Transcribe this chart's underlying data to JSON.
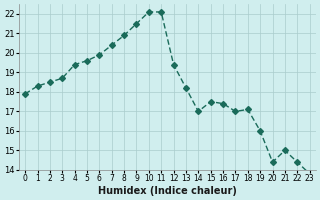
{
  "xlabel": "Humidex (Indice chaleur)",
  "x": [
    0,
    1,
    2,
    3,
    4,
    5,
    6,
    7,
    8,
    9,
    10,
    11,
    12,
    13,
    14,
    15,
    16,
    17,
    18,
    19,
    20,
    21,
    22,
    23
  ],
  "y": [
    17.9,
    18.3,
    18.5,
    18.7,
    19.4,
    19.6,
    19.9,
    20.4,
    20.9,
    21.5,
    22.1,
    22.1,
    19.4,
    18.2,
    17.0,
    17.5,
    17.4,
    17.0,
    17.1,
    16.0,
    14.4,
    15.0,
    14.4,
    13.8
  ],
  "ylim": [
    14,
    22.5
  ],
  "yticks": [
    14,
    15,
    16,
    17,
    18,
    19,
    20,
    21,
    22
  ],
  "xticks": [
    0,
    1,
    2,
    3,
    4,
    5,
    6,
    7,
    8,
    9,
    10,
    11,
    12,
    13,
    14,
    15,
    16,
    17,
    18,
    19,
    20,
    21,
    22,
    23
  ],
  "line_color": "#1a6b5a",
  "marker": "D",
  "marker_size": 3,
  "bg_color": "#d0eeee",
  "grid_color": "#aacccc",
  "axis_bg": "#d0eeee"
}
